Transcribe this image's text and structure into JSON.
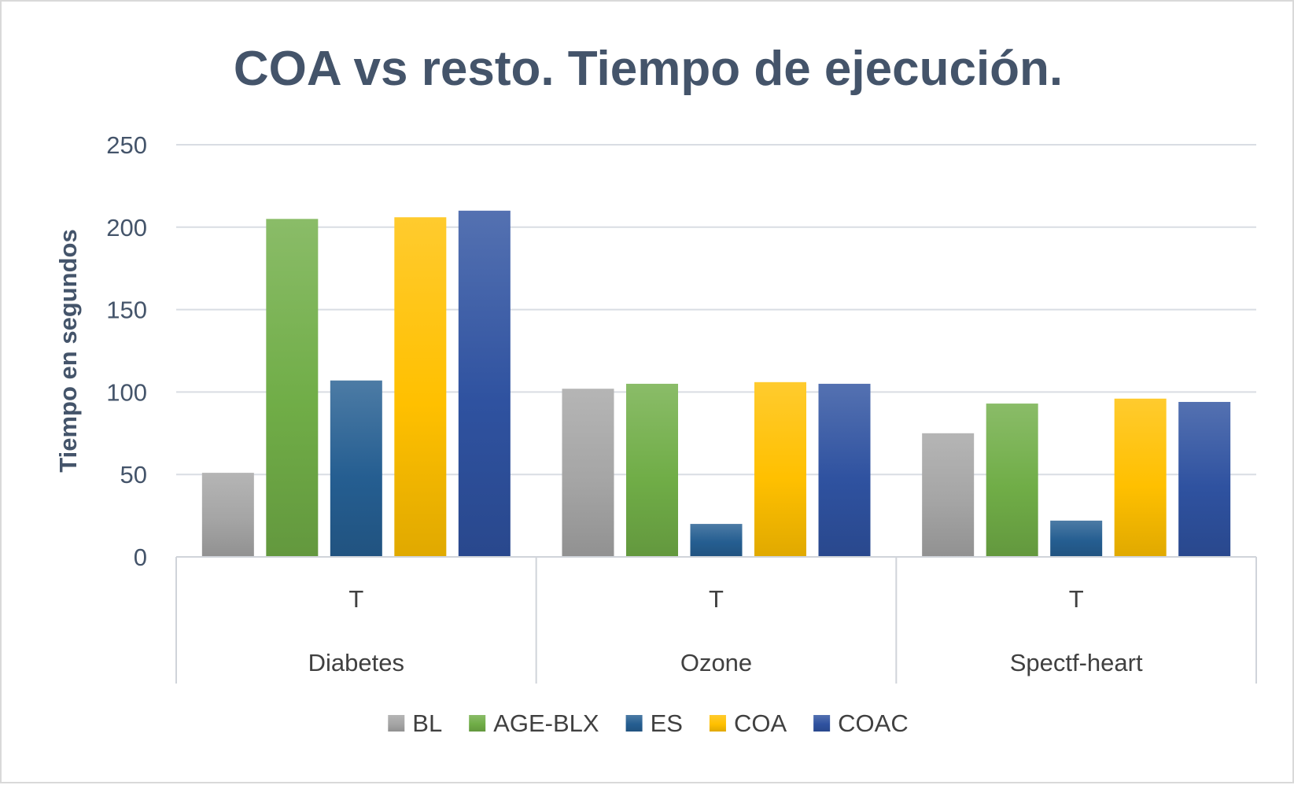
{
  "chart_data": {
    "type": "bar",
    "title": "COA vs resto. Tiempo de ejecución.",
    "xlabel": "",
    "ylabel": "Tiempo en segundos",
    "ylim": [
      0,
      250
    ],
    "yticks": [
      0,
      50,
      100,
      150,
      200,
      250
    ],
    "grid": true,
    "legend_position": "bottom",
    "categories": [
      "Diabetes",
      "Ozone",
      "Spectf-heart"
    ],
    "subcategories": [
      "T",
      "T",
      "T"
    ],
    "series": [
      {
        "name": "BL",
        "color": "#a5a5a5",
        "values": [
          51,
          102,
          75
        ]
      },
      {
        "name": "AGE-BLX",
        "color": "#70ad47",
        "values": [
          205,
          105,
          93
        ]
      },
      {
        "name": "ES",
        "color": "#255e91",
        "values": [
          107,
          20,
          22
        ]
      },
      {
        "name": "COA",
        "color": "#ffc000",
        "values": [
          206,
          106,
          96
        ]
      },
      {
        "name": "COAC",
        "color": "#2f52a0",
        "values": [
          210,
          105,
          94
        ]
      }
    ]
  }
}
